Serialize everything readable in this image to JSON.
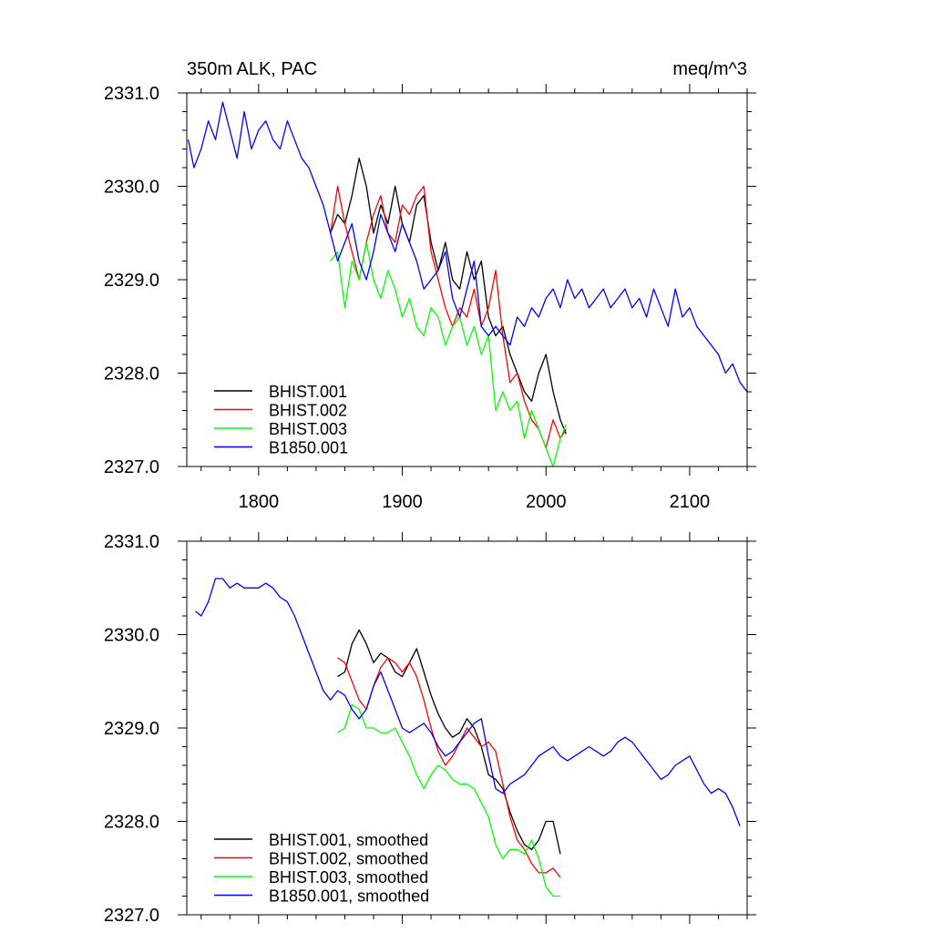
{
  "chart_data": [
    {
      "type": "line",
      "title": "350m ALK, PAC",
      "units": "meq/m^3",
      "xlim": [
        1750,
        2140
      ],
      "ylim": [
        2327.0,
        2331.0
      ],
      "x_ticks": [
        1800,
        1900,
        2000,
        2100
      ],
      "x_tick_labels": [
        "1800",
        "1900",
        "2000",
        "2100"
      ],
      "y_ticks": [
        2327.0,
        2328.0,
        2329.0,
        2330.0,
        2331.0
      ],
      "y_tick_labels": [
        "2327.0",
        "2328.0",
        "2329.0",
        "2330.0",
        "2331.0"
      ],
      "legend_position": "bottom-left",
      "grid": false,
      "series": [
        {
          "name": "BHIST.001",
          "color": "#000000",
          "x": [
            1850,
            1855,
            1860,
            1865,
            1870,
            1875,
            1880,
            1885,
            1890,
            1895,
            1900,
            1905,
            1910,
            1915,
            1920,
            1925,
            1930,
            1935,
            1940,
            1945,
            1950,
            1955,
            1960,
            1965,
            1970,
            1975,
            1980,
            1985,
            1990,
            1995,
            2000,
            2005,
            2010,
            2014
          ],
          "y": [
            2329.5,
            2329.7,
            2329.6,
            2329.9,
            2330.3,
            2330.0,
            2329.5,
            2329.8,
            2329.6,
            2330.0,
            2329.6,
            2329.4,
            2329.8,
            2329.9,
            2329.4,
            2329.1,
            2329.4,
            2329.0,
            2328.9,
            2329.3,
            2329.0,
            2329.2,
            2328.6,
            2328.4,
            2328.5,
            2328.2,
            2328.0,
            2327.8,
            2327.7,
            2328.0,
            2328.2,
            2327.8,
            2327.5,
            2327.35
          ]
        },
        {
          "name": "BHIST.002",
          "color": "#ff0000",
          "x": [
            1850,
            1855,
            1860,
            1865,
            1870,
            1875,
            1880,
            1885,
            1890,
            1895,
            1900,
            1905,
            1910,
            1915,
            1920,
            1925,
            1930,
            1935,
            1940,
            1945,
            1950,
            1955,
            1960,
            1965,
            1970,
            1975,
            1980,
            1985,
            1990,
            1995,
            2000,
            2005,
            2010,
            2014
          ],
          "y": [
            2329.5,
            2330.0,
            2329.6,
            2329.3,
            2329.0,
            2329.4,
            2329.7,
            2329.9,
            2329.5,
            2329.4,
            2329.8,
            2329.7,
            2329.9,
            2330.0,
            2329.3,
            2329.0,
            2328.7,
            2328.5,
            2328.7,
            2328.6,
            2328.9,
            2328.5,
            2328.7,
            2329.1,
            2328.4,
            2327.9,
            2328.0,
            2327.7,
            2327.5,
            2327.4,
            2327.2,
            2327.5,
            2327.3,
            2327.4
          ]
        },
        {
          "name": "BHIST.003",
          "color": "#00ff00",
          "x": [
            1850,
            1855,
            1860,
            1865,
            1870,
            1875,
            1880,
            1885,
            1890,
            1895,
            1900,
            1905,
            1910,
            1915,
            1920,
            1925,
            1930,
            1935,
            1940,
            1945,
            1950,
            1955,
            1960,
            1965,
            1970,
            1975,
            1980,
            1985,
            1990,
            1995,
            2000,
            2005,
            2010,
            2014
          ],
          "y": [
            2329.2,
            2329.3,
            2328.7,
            2329.2,
            2329.0,
            2329.4,
            2329.0,
            2328.8,
            2329.1,
            2328.9,
            2328.6,
            2328.8,
            2328.5,
            2328.4,
            2328.7,
            2328.6,
            2328.3,
            2328.5,
            2328.6,
            2328.3,
            2328.5,
            2328.2,
            2328.4,
            2327.6,
            2327.8,
            2327.6,
            2327.7,
            2327.3,
            2327.6,
            2327.4,
            2327.2,
            2327.0,
            2327.3,
            2327.45
          ]
        },
        {
          "name": "B1850.001",
          "color": "#0000ff",
          "x": [
            1751,
            1755,
            1760,
            1765,
            1770,
            1775,
            1780,
            1785,
            1790,
            1795,
            1800,
            1805,
            1810,
            1815,
            1820,
            1825,
            1830,
            1835,
            1840,
            1845,
            1850,
            1855,
            1860,
            1865,
            1870,
            1875,
            1880,
            1885,
            1890,
            1895,
            1900,
            1905,
            1910,
            1915,
            1920,
            1925,
            1930,
            1935,
            1940,
            1945,
            1950,
            1955,
            1960,
            1965,
            1970,
            1975,
            1980,
            1985,
            1990,
            1995,
            2000,
            2005,
            2010,
            2015,
            2020,
            2025,
            2030,
            2035,
            2040,
            2045,
            2050,
            2055,
            2060,
            2065,
            2070,
            2075,
            2080,
            2085,
            2090,
            2095,
            2100,
            2105,
            2110,
            2115,
            2120,
            2125,
            2130,
            2135,
            2140
          ],
          "y": [
            2330.5,
            2330.2,
            2330.4,
            2330.7,
            2330.5,
            2330.9,
            2330.6,
            2330.3,
            2330.8,
            2330.4,
            2330.6,
            2330.7,
            2330.5,
            2330.4,
            2330.7,
            2330.5,
            2330.3,
            2330.2,
            2330.0,
            2329.8,
            2329.5,
            2329.2,
            2329.4,
            2329.6,
            2329.2,
            2329.0,
            2329.3,
            2329.7,
            2329.5,
            2329.3,
            2329.6,
            2329.4,
            2329.2,
            2328.9,
            2329.0,
            2329.1,
            2329.3,
            2328.8,
            2328.6,
            2328.9,
            2329.2,
            2328.5,
            2328.4,
            2328.5,
            2328.4,
            2328.3,
            2328.6,
            2328.5,
            2328.7,
            2328.6,
            2328.8,
            2328.9,
            2328.7,
            2329.0,
            2328.8,
            2328.9,
            2328.7,
            2328.8,
            2328.9,
            2328.7,
            2328.8,
            2328.9,
            2328.7,
            2328.8,
            2328.6,
            2328.9,
            2328.7,
            2328.5,
            2328.9,
            2328.6,
            2328.7,
            2328.5,
            2328.4,
            2328.3,
            2328.2,
            2328.0,
            2328.1,
            2327.9,
            2327.8
          ]
        }
      ]
    },
    {
      "type": "line",
      "xlim": [
        1750,
        2140
      ],
      "ylim": [
        2327.0,
        2331.0
      ],
      "x_ticks": [
        1800,
        1900,
        2000,
        2100
      ],
      "y_ticks": [
        2327.0,
        2328.0,
        2329.0,
        2330.0,
        2331.0
      ],
      "y_tick_labels": [
        "2327.0",
        "2328.0",
        "2329.0",
        "2330.0",
        "2331.0"
      ],
      "legend_position": "bottom-left",
      "grid": false,
      "series": [
        {
          "name": "BHIST.001, smoothed",
          "color": "#000000",
          "x": [
            1855,
            1860,
            1865,
            1870,
            1875,
            1880,
            1885,
            1890,
            1895,
            1900,
            1905,
            1910,
            1915,
            1920,
            1925,
            1930,
            1935,
            1940,
            1945,
            1950,
            1955,
            1960,
            1965,
            1970,
            1975,
            1980,
            1985,
            1990,
            1995,
            2000,
            2005,
            2010
          ],
          "y": [
            2329.55,
            2329.6,
            2329.9,
            2330.05,
            2329.9,
            2329.7,
            2329.8,
            2329.75,
            2329.6,
            2329.55,
            2329.7,
            2329.85,
            2329.6,
            2329.35,
            2329.15,
            2329.0,
            2328.9,
            2328.95,
            2329.1,
            2329.0,
            2328.8,
            2328.5,
            2328.45,
            2328.35,
            2328.1,
            2327.9,
            2327.75,
            2327.7,
            2327.8,
            2328.0,
            2328.0,
            2327.65
          ]
        },
        {
          "name": "BHIST.002, smoothed",
          "color": "#ff0000",
          "x": [
            1855,
            1860,
            1865,
            1870,
            1875,
            1880,
            1885,
            1890,
            1895,
            1900,
            1905,
            1910,
            1915,
            1920,
            1925,
            1930,
            1935,
            1940,
            1945,
            1950,
            1955,
            1960,
            1965,
            1970,
            1975,
            1980,
            1985,
            1990,
            1995,
            2000,
            2005,
            2010
          ],
          "y": [
            2329.75,
            2329.7,
            2329.5,
            2329.3,
            2329.2,
            2329.45,
            2329.65,
            2329.75,
            2329.7,
            2329.6,
            2329.7,
            2329.55,
            2329.3,
            2329.0,
            2328.75,
            2328.6,
            2328.7,
            2328.85,
            2329.0,
            2328.9,
            2328.8,
            2328.85,
            2328.75,
            2328.4,
            2328.05,
            2327.8,
            2327.7,
            2327.55,
            2327.45,
            2327.45,
            2327.5,
            2327.4
          ]
        },
        {
          "name": "BHIST.003, smoothed",
          "color": "#00ff00",
          "x": [
            1855,
            1860,
            1865,
            1870,
            1875,
            1880,
            1885,
            1890,
            1895,
            1900,
            1905,
            1910,
            1915,
            1920,
            1925,
            1930,
            1935,
            1940,
            1945,
            1950,
            1955,
            1960,
            1965,
            1970,
            1975,
            1980,
            1985,
            1990,
            1995,
            2000,
            2005,
            2010
          ],
          "y": [
            2328.95,
            2329.0,
            2329.25,
            2329.2,
            2329.0,
            2329.0,
            2328.95,
            2328.95,
            2329.0,
            2328.85,
            2328.7,
            2328.5,
            2328.35,
            2328.5,
            2328.6,
            2328.55,
            2328.45,
            2328.4,
            2328.4,
            2328.35,
            2328.2,
            2328.05,
            2327.75,
            2327.6,
            2327.7,
            2327.7,
            2327.65,
            2327.8,
            2327.6,
            2327.3,
            2327.2,
            2327.2
          ]
        },
        {
          "name": "B1850.001, smoothed",
          "color": "#0000ff",
          "x": [
            1756,
            1760,
            1765,
            1770,
            1775,
            1780,
            1785,
            1790,
            1795,
            1800,
            1805,
            1810,
            1815,
            1820,
            1825,
            1830,
            1835,
            1840,
            1845,
            1850,
            1855,
            1860,
            1865,
            1870,
            1875,
            1880,
            1885,
            1890,
            1895,
            1900,
            1905,
            1910,
            1915,
            1920,
            1925,
            1930,
            1935,
            1940,
            1945,
            1950,
            1955,
            1960,
            1965,
            1970,
            1975,
            1980,
            1985,
            1990,
            1995,
            2000,
            2005,
            2010,
            2015,
            2020,
            2025,
            2030,
            2035,
            2040,
            2045,
            2050,
            2055,
            2060,
            2065,
            2070,
            2075,
            2080,
            2085,
            2090,
            2095,
            2100,
            2105,
            2110,
            2115,
            2120,
            2125,
            2130,
            2135
          ],
          "y": [
            2330.25,
            2330.2,
            2330.35,
            2330.6,
            2330.6,
            2330.5,
            2330.55,
            2330.5,
            2330.5,
            2330.5,
            2330.55,
            2330.5,
            2330.4,
            2330.35,
            2330.2,
            2330.0,
            2329.8,
            2329.6,
            2329.4,
            2329.3,
            2329.4,
            2329.35,
            2329.2,
            2329.1,
            2329.2,
            2329.45,
            2329.6,
            2329.4,
            2329.2,
            2329.0,
            2328.95,
            2329.0,
            2329.05,
            2328.95,
            2328.8,
            2328.7,
            2328.75,
            2328.85,
            2328.95,
            2329.05,
            2329.1,
            2328.7,
            2328.35,
            2328.3,
            2328.4,
            2328.45,
            2328.5,
            2328.6,
            2328.7,
            2328.75,
            2328.8,
            2328.7,
            2328.65,
            2328.7,
            2328.75,
            2328.8,
            2328.75,
            2328.7,
            2328.75,
            2328.85,
            2328.9,
            2328.85,
            2328.75,
            2328.65,
            2328.55,
            2328.45,
            2328.5,
            2328.6,
            2328.65,
            2328.7,
            2328.55,
            2328.4,
            2328.3,
            2328.35,
            2328.3,
            2328.15,
            2327.95
          ]
        }
      ]
    }
  ]
}
